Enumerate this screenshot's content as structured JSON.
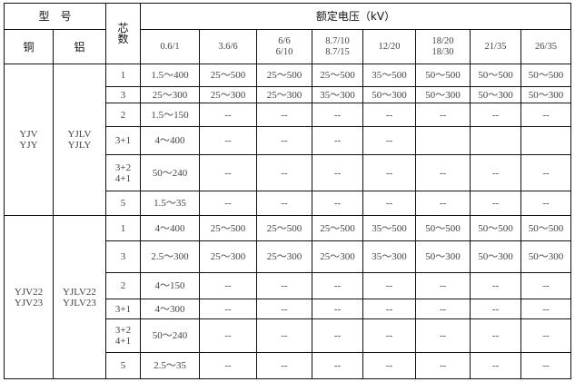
{
  "header": {
    "model": "型　号",
    "copper": "铜",
    "aluminum": "铝",
    "cores": "芯\n数",
    "rated_voltage": "额定电压（kV）",
    "voltages": [
      "0.6/1",
      "3.6/6",
      "6/6\n6/10",
      "8.7/10\n8.7/15",
      "12/20",
      "18/20\n18/30",
      "21/35",
      "26/35"
    ]
  },
  "groups": [
    {
      "copper": "YJV\nYJY",
      "aluminum": "YJLV\nYJLY",
      "rows": [
        {
          "cores": "1",
          "values": [
            "1.5～400",
            "25～500",
            "25～500",
            "25～500",
            "35～500",
            "50～500",
            "50～500",
            "50～500"
          ]
        },
        {
          "cores": "3",
          "values": [
            "25～300",
            "25～300",
            "25～300",
            "35～300",
            "50～300",
            "50～300",
            "50～300",
            "50～300"
          ]
        },
        {
          "cores": "2",
          "values": [
            "1.5～150",
            "--",
            "--",
            "--",
            "--",
            "--",
            "--",
            "--"
          ]
        },
        {
          "cores": "3+1",
          "values": [
            "4～400",
            "--",
            "--",
            "--",
            "--",
            "",
            "",
            ""
          ]
        },
        {
          "cores": "3+2\n4+1",
          "values": [
            "50～240",
            "--",
            "--",
            "--",
            "--",
            "--",
            "--",
            "--"
          ]
        },
        {
          "cores": "5",
          "values": [
            "1.5～35",
            "--",
            "--",
            "--",
            "--",
            "--",
            "--",
            "--"
          ]
        }
      ]
    },
    {
      "copper": "YJV22\nYJV23",
      "aluminum": "YJLV22\nYJLV23",
      "rows": [
        {
          "cores": "1",
          "values": [
            "4～400",
            "25～500",
            "25～500",
            "25～500",
            "35～500",
            "50～500",
            "50～500",
            "50～500"
          ]
        },
        {
          "cores": "3",
          "values": [
            "2.5～300",
            "25～300",
            "25～300",
            "25～300",
            "35～300",
            "50～300",
            "50～300",
            "50～300"
          ]
        },
        {
          "cores": "2",
          "values": [
            "4～150",
            "--",
            "--",
            "--",
            "--",
            "--",
            "--",
            "--"
          ]
        },
        {
          "cores": "3+1",
          "values": [
            "4～300",
            "--",
            "--",
            "--",
            "--",
            "--",
            "--",
            "--"
          ]
        },
        {
          "cores": "3+2\n4+1",
          "values": [
            "50～240",
            "--",
            "--",
            "--",
            "--",
            "--",
            "--",
            "--"
          ]
        },
        {
          "cores": "5",
          "values": [
            "2.5～35",
            "--",
            "--",
            "--",
            "--",
            "--",
            "--",
            "--"
          ]
        }
      ]
    }
  ]
}
